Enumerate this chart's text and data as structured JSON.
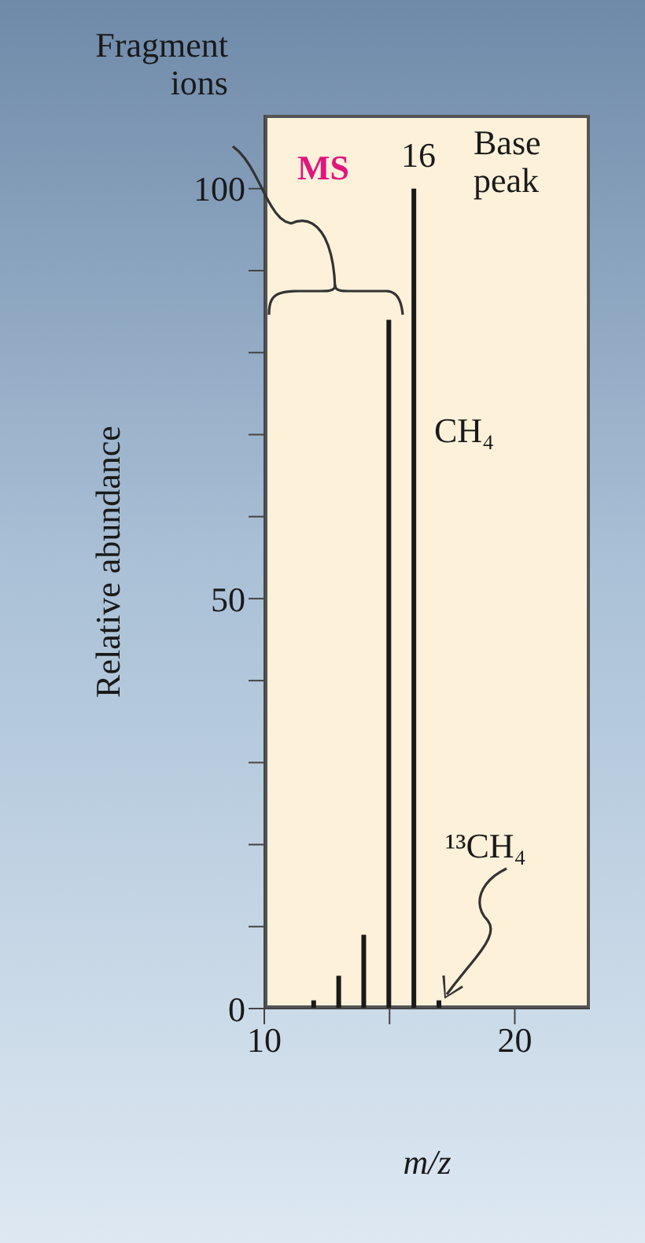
{
  "chart_data": {
    "type": "bar",
    "xlabel": "m/z",
    "ylabel": "Relative abundance",
    "x": [
      12,
      13,
      14,
      15,
      16,
      17
    ],
    "values": [
      1,
      4,
      9,
      84,
      100,
      1
    ],
    "color": "#1a1a1a",
    "xlim": [
      10,
      23
    ],
    "xticks": [
      10,
      {
        "value": 15,
        "label": null
      },
      20
    ],
    "ylim": [
      0,
      109
    ],
    "yticks": [
      0,
      {
        "value": 10,
        "label": null
      },
      {
        "value": 20,
        "label": null
      },
      {
        "value": 30,
        "label": null
      },
      {
        "value": 40,
        "label": null
      },
      50,
      {
        "value": 60,
        "label": null
      },
      {
        "value": 70,
        "label": null
      },
      {
        "value": 80,
        "label": null
      },
      {
        "value": 90,
        "label": null
      },
      100
    ],
    "grid": false,
    "legend": false,
    "annotations": [
      "Fragment ions",
      "MS",
      "16",
      "Base peak",
      "CH₄",
      "¹³CH₄"
    ]
  }
}
